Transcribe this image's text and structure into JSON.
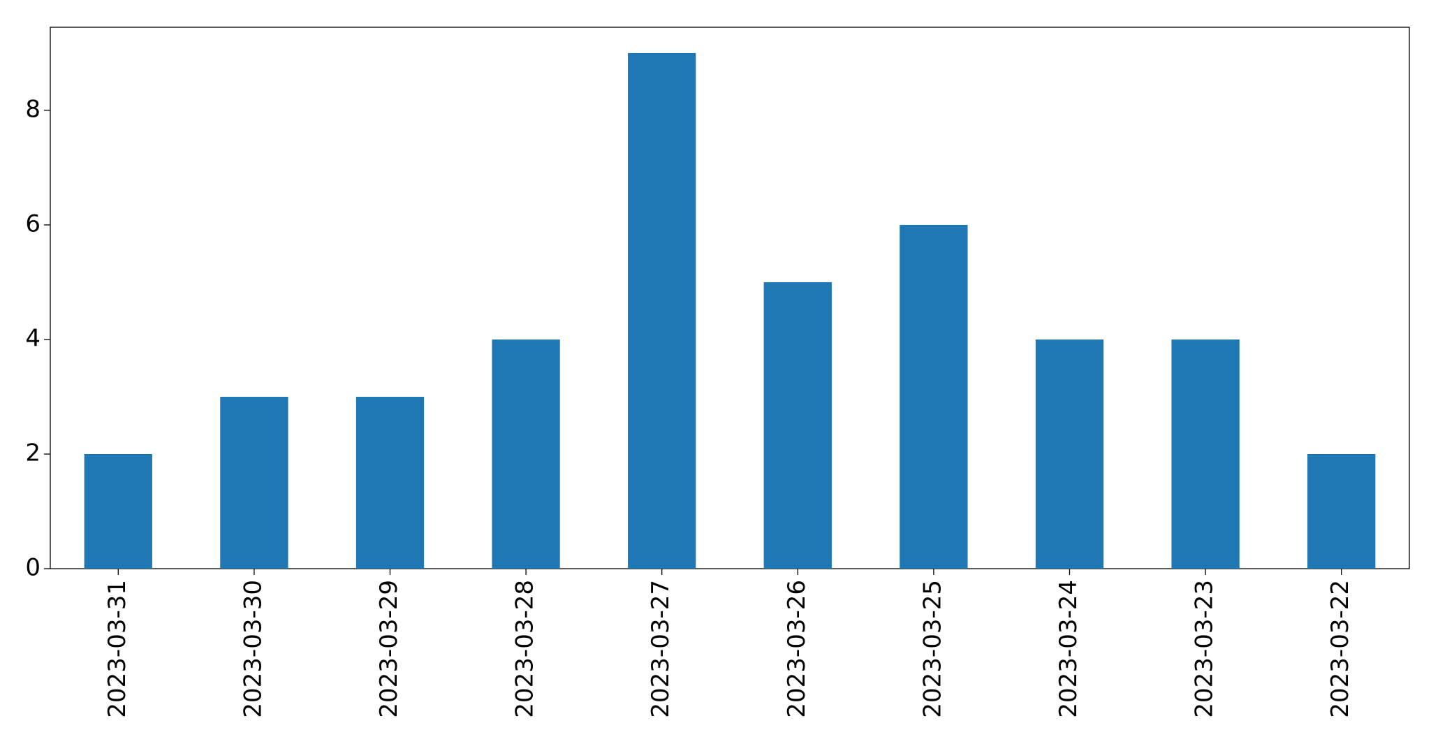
{
  "chart_data": {
    "type": "bar",
    "categories": [
      "2023-03-31",
      "2023-03-30",
      "2023-03-29",
      "2023-03-28",
      "2023-03-27",
      "2023-03-26",
      "2023-03-25",
      "2023-03-24",
      "2023-03-23",
      "2023-03-22"
    ],
    "values": [
      2,
      3,
      3,
      4,
      9,
      5,
      6,
      4,
      4,
      2
    ],
    "color": "#1f77b4",
    "ylim": [
      0,
      9.45
    ],
    "yticks": [
      0,
      2,
      4,
      6,
      8
    ],
    "grid": false
  }
}
